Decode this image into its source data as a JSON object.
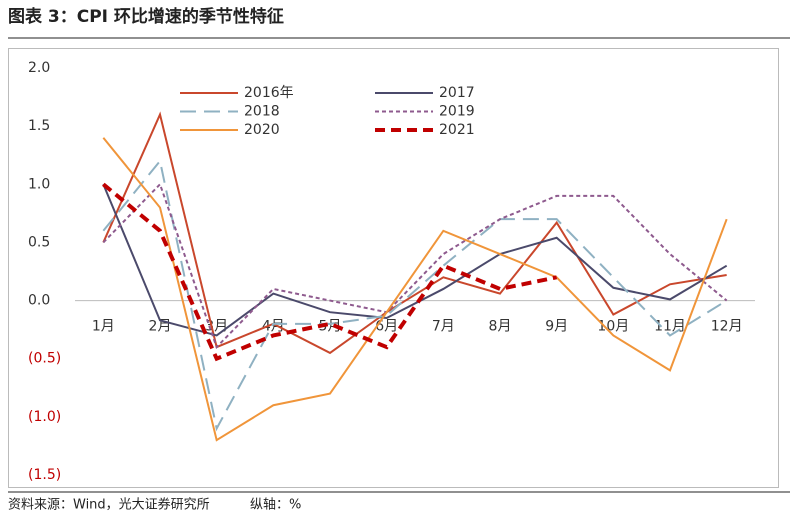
{
  "chart_data": {
    "type": "line",
    "title": "图表 3：CPI 环比增速的季节性特征",
    "source": "资料来源：Wind，光大证券研究所",
    "note": "纵轴：%",
    "categories": [
      "1月",
      "2月",
      "3月",
      "4月",
      "5月",
      "6月",
      "7月",
      "8月",
      "9月",
      "10月",
      "11月",
      "12月"
    ],
    "series": [
      {
        "name": "2016年",
        "color": "#c9472c",
        "style": "solid",
        "width": 2,
        "values": [
          0.5,
          1.6,
          -0.4,
          -0.2,
          -0.45,
          -0.1,
          0.2,
          0.06,
          0.67,
          -0.12,
          0.14,
          0.22
        ]
      },
      {
        "name": "2017",
        "color": "#4b4a6b",
        "style": "solid",
        "width": 2,
        "values": [
          1.0,
          -0.17,
          -0.3,
          0.06,
          -0.1,
          -0.15,
          0.1,
          0.4,
          0.54,
          0.11,
          0.01,
          0.3
        ]
      },
      {
        "name": "2018",
        "color": "#8fb1c2",
        "style": "dashed",
        "width": 2,
        "values": [
          0.6,
          1.2,
          -1.1,
          -0.2,
          -0.2,
          -0.13,
          0.3,
          0.7,
          0.7,
          0.2,
          -0.3,
          0.0
        ]
      },
      {
        "name": "2019",
        "color": "#8e5a8e",
        "style": "dotted",
        "width": 2,
        "values": [
          0.5,
          1.0,
          -0.4,
          0.1,
          0.0,
          -0.1,
          0.4,
          0.7,
          0.9,
          0.9,
          0.4,
          0.0
        ]
      },
      {
        "name": "2020",
        "color": "#f0953a",
        "style": "solid",
        "width": 2,
        "values": [
          1.4,
          0.8,
          -1.2,
          -0.9,
          -0.8,
          -0.1,
          0.6,
          0.4,
          0.2,
          -0.3,
          -0.6,
          0.7
        ]
      },
      {
        "name": "2021",
        "color": "#c00000",
        "style": "dashed",
        "width": 4,
        "values": [
          1.0,
          0.6,
          -0.5,
          -0.3,
          -0.2,
          -0.4,
          0.3,
          0.1,
          0.2,
          null,
          null,
          null
        ]
      }
    ],
    "ylim": [
      -1.5,
      2.0
    ],
    "yticks": [
      {
        "value": 2.0,
        "label": "2.0"
      },
      1.5,
      {
        "value": 1.0,
        "label": "1.0"
      },
      0.5,
      {
        "value": 0.0,
        "label": "0.0"
      },
      {
        "value": -0.5,
        "label": "(0.5)"
      },
      {
        "value": -1.0,
        "label": "(1.0)"
      },
      {
        "value": -1.5,
        "label": "(1.5)"
      }
    ],
    "negative_tick_color": "#c00000",
    "grid": false
  }
}
